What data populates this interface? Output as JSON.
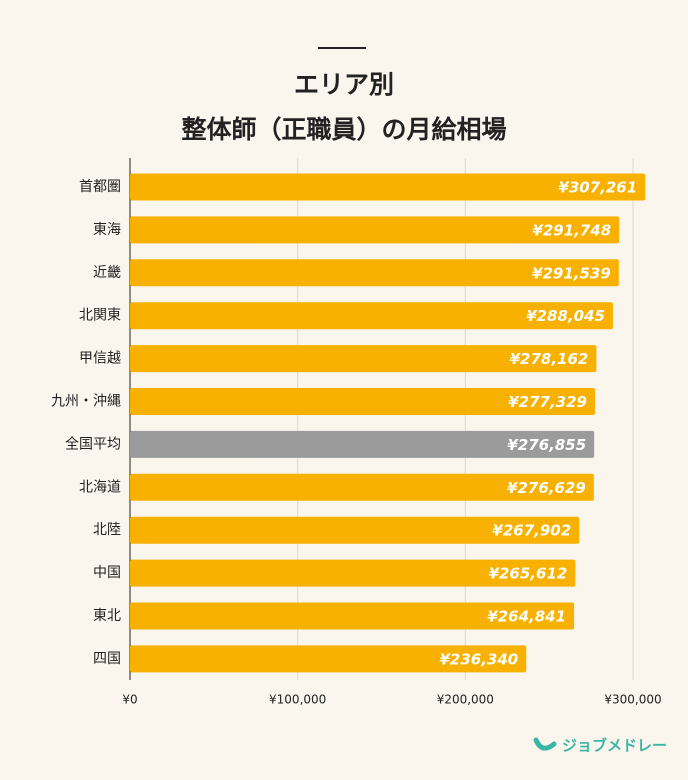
{
  "chart_data": {
    "type": "bar",
    "orientation": "horizontal",
    "title": [
      "エリア別",
      "整体師（正職員）の月給相場"
    ],
    "categories": [
      "首都圏",
      "東海",
      "近畿",
      "北関東",
      "甲信越",
      "九州・沖縄",
      "全国平均",
      "北海道",
      "北陸",
      "中国",
      "東北",
      "四国"
    ],
    "values": [
      307261,
      291748,
      291539,
      288045,
      278162,
      277329,
      276855,
      276629,
      267902,
      265612,
      264841,
      236340
    ],
    "value_labels": [
      "¥307,261",
      "¥291,748",
      "¥291,539",
      "¥288,045",
      "¥278,162",
      "¥277,329",
      "¥276,855",
      "¥276,629",
      "¥267,902",
      "¥265,612",
      "¥264,841",
      "¥236,340"
    ],
    "colors": [
      "#f8b100",
      "#f8b100",
      "#f8b100",
      "#f8b100",
      "#f8b100",
      "#f8b100",
      "#9b9b9b",
      "#f8b100",
      "#f8b100",
      "#f8b100",
      "#f8b100",
      "#f8b100"
    ],
    "xlim": [
      0,
      300000
    ],
    "xticks": [
      {
        "value": 0,
        "label": "¥0"
      },
      {
        "value": 100000,
        "label": "¥100,000"
      },
      {
        "value": 200000,
        "label": "¥200,000"
      },
      {
        "value": 300000,
        "label": "¥300,000"
      }
    ],
    "grid": true
  },
  "logo": "ジョブメドレー"
}
